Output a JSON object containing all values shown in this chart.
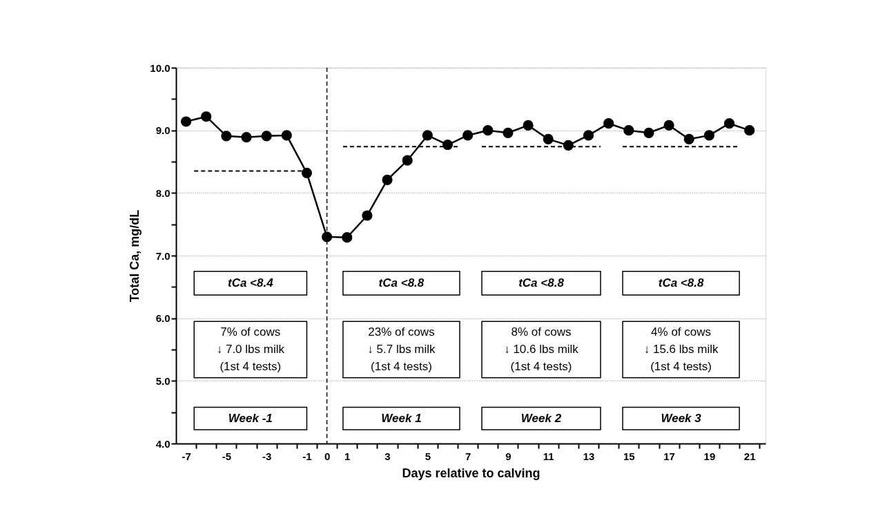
{
  "chart_data": {
    "type": "line",
    "xlabel": "Days relative to calving",
    "ylabel": "Total Ca, mg/dL",
    "xlim": [
      -7.5,
      21.8
    ],
    "ylim": [
      4.0,
      10.0
    ],
    "xticks": [
      -7,
      -5,
      -3,
      -1,
      0,
      1,
      3,
      5,
      7,
      9,
      11,
      13,
      15,
      17,
      19,
      21,
      {
        "value": -6.5,
        "label": null
      },
      {
        "value": -5.5,
        "label": null
      },
      {
        "value": -4.5,
        "label": null
      },
      {
        "value": -3.5,
        "label": null
      },
      {
        "value": -2.5,
        "label": null
      },
      {
        "value": -1.5,
        "label": null
      },
      {
        "value": -0.5,
        "label": null
      },
      {
        "value": 0.5,
        "label": null
      },
      {
        "value": 1.5,
        "label": null
      },
      {
        "value": 2.5,
        "label": null
      },
      {
        "value": 3.5,
        "label": null
      },
      {
        "value": 4.5,
        "label": null
      },
      {
        "value": 5.5,
        "label": null
      },
      {
        "value": 6.5,
        "label": null
      },
      {
        "value": 7.5,
        "label": null
      },
      {
        "value": 8.5,
        "label": null
      },
      {
        "value": 9.5,
        "label": null
      },
      {
        "value": 10.5,
        "label": null
      },
      {
        "value": 11.5,
        "label": null
      },
      {
        "value": 12.5,
        "label": null
      },
      {
        "value": 13.5,
        "label": null
      },
      {
        "value": 14.5,
        "label": null
      },
      {
        "value": 15.5,
        "label": null
      },
      {
        "value": 16.5,
        "label": null
      },
      {
        "value": 17.5,
        "label": null
      },
      {
        "value": 18.5,
        "label": null
      },
      {
        "value": 19.5,
        "label": null
      },
      {
        "value": 20.5,
        "label": null
      },
      {
        "value": 21.5,
        "label": null
      }
    ],
    "yticks": [
      {
        "value": 4,
        "label": "4.0"
      },
      {
        "value": 4.5,
        "label": null
      },
      {
        "value": 5,
        "label": "5.0"
      },
      {
        "value": 5.5,
        "label": null
      },
      {
        "value": 6,
        "label": "6.0"
      },
      {
        "value": 6.5,
        "label": null
      },
      {
        "value": 7,
        "label": "7.0"
      },
      {
        "value": 7.5,
        "label": null
      },
      {
        "value": 8,
        "label": "8.0"
      },
      {
        "value": 8.5,
        "label": null
      },
      {
        "value": 9,
        "label": "9.0"
      },
      {
        "value": 9.5,
        "label": null
      },
      {
        "value": 10,
        "label": "10.0"
      }
    ],
    "grid": "y",
    "marker": "circle",
    "line_style": "solid",
    "series": [
      {
        "color": "#000000",
        "x": [
          -7,
          -6,
          -5,
          -4,
          -3,
          -2,
          -1,
          0,
          1,
          2,
          3,
          4,
          5,
          6,
          7,
          8,
          9,
          10,
          11,
          12,
          13,
          14,
          15,
          16,
          17,
          18,
          19,
          20,
          21
        ],
        "values": [
          9.14,
          9.22,
          8.91,
          8.89,
          8.91,
          8.92,
          8.32,
          7.3,
          7.29,
          7.64,
          8.21,
          8.52,
          8.92,
          8.77,
          8.92,
          9.0,
          8.96,
          9.08,
          8.86,
          8.76,
          8.92,
          9.11,
          9.0,
          8.96,
          9.08,
          8.86,
          8.92,
          9.11,
          9.0
        ]
      },
      {
        "type": "line",
        "color": "#000000",
        "marker": "none",
        "line_style": "dashed",
        "x": [
          -6.6,
          -1.0
        ],
        "values": [
          8.35,
          8.35
        ]
      },
      {
        "type": "line",
        "color": "#000000",
        "marker": "none",
        "line_style": "dashed",
        "x": [
          0.8,
          6.6
        ],
        "values": [
          8.74,
          8.74
        ]
      },
      {
        "type": "line",
        "color": "#000000",
        "marker": "none",
        "line_style": "dashed",
        "x": [
          7.7,
          13.6
        ],
        "values": [
          8.74,
          8.74
        ]
      },
      {
        "type": "line",
        "color": "#000000",
        "marker": "none",
        "line_style": "dashed",
        "x": [
          14.7,
          20.5
        ],
        "values": [
          8.74,
          8.74
        ]
      }
    ],
    "ref_lines": [
      {
        "axis": "x",
        "value": 0,
        "color": "#000000",
        "line_style": "dashed"
      }
    ],
    "annotations": [
      "tCa <8.4",
      "tCa <8.8",
      "tCa <8.8",
      "tCa <8.8",
      "7% of cows\n↓ 7.0 lbs milk\n(1st 4 tests)",
      "23% of cows\n↓ 5.7 lbs milk\n(1st 4 tests)",
      "8% of cows\n↓ 10.6 lbs milk\n(1st 4 tests)",
      "4% of cows\n↓ 15.6 lbs milk\n(1st 4 tests)",
      "Week -1",
      "Week 1",
      "Week 2",
      "Week 3"
    ]
  }
}
